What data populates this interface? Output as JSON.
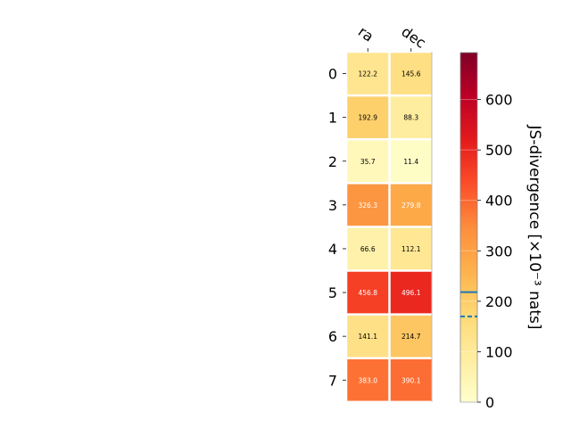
{
  "chart_data": {
    "type": "heatmap",
    "columns": [
      "ra",
      "dec"
    ],
    "rows": [
      "0",
      "1",
      "2",
      "3",
      "4",
      "5",
      "6",
      "7"
    ],
    "values": [
      [
        122.2,
        145.6
      ],
      [
        192.9,
        88.3
      ],
      [
        35.7,
        11.4
      ],
      [
        326.3,
        279.8
      ],
      [
        66.6,
        112.1
      ],
      [
        456.8,
        496.1
      ],
      [
        141.1,
        214.7
      ],
      [
        383.0,
        390.1
      ]
    ],
    "value_labels": [
      [
        "122.2",
        "145.6"
      ],
      [
        "192.9",
        "88.3"
      ],
      [
        "35.7",
        "11.4"
      ],
      [
        "326.3",
        "279.8"
      ],
      [
        "66.6",
        "112.1"
      ],
      [
        "456.8",
        "496.1"
      ],
      [
        "141.1",
        "214.7"
      ],
      [
        "383.0",
        "390.1"
      ]
    ],
    "colorbar": {
      "label": "JS-divergence [×10⁻³ nats]",
      "range": [
        0,
        693
      ],
      "ticks": [
        0,
        100,
        200,
        300,
        400,
        500,
        600
      ],
      "tick_labels": [
        "0",
        "100",
        "200",
        "300",
        "400",
        "500",
        "600"
      ],
      "colormap": "YlOrRd",
      "markers": [
        {
          "value": 218,
          "style": "solid",
          "color": "#1f77b4"
        },
        {
          "value": 170,
          "style": "dashed",
          "color": "#1f77b4"
        }
      ]
    },
    "grid": false
  }
}
